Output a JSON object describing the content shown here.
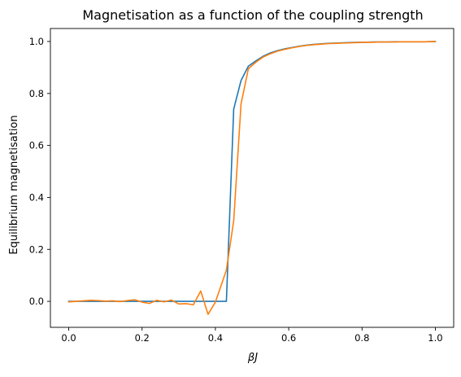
{
  "chart_data": {
    "type": "line",
    "title": "Magnetisation as a function of the coupling strength",
    "xlabel": "βJ",
    "ylabel": "Equilibrium magnetisation",
    "xlim": [
      -0.05,
      1.05
    ],
    "ylim": [
      -0.1,
      1.05
    ],
    "xticks": [
      0.0,
      0.2,
      0.4,
      0.6,
      0.8,
      1.0
    ],
    "xtick_labels": [
      "0.0",
      "0.2",
      "0.4",
      "0.6",
      "0.8",
      "1.0"
    ],
    "yticks": [
      0.0,
      0.2,
      0.4,
      0.6,
      0.8,
      1.0
    ],
    "ytick_labels": [
      "0.0",
      "0.2",
      "0.4",
      "0.6",
      "0.8",
      "1.0"
    ],
    "grid": false,
    "legend": "none",
    "series": [
      {
        "color": "#1f77b4",
        "x": [
          0,
          0.02,
          0.04,
          0.06,
          0.08,
          0.1,
          0.12,
          0.14,
          0.16,
          0.18,
          0.2,
          0.22,
          0.24,
          0.26,
          0.28,
          0.3,
          0.32,
          0.34,
          0.36,
          0.38,
          0.4,
          0.42,
          0.43,
          0.45,
          0.47,
          0.49,
          0.51,
          0.53,
          0.55,
          0.57,
          0.59,
          0.61,
          0.63,
          0.65,
          0.67,
          0.69,
          0.71,
          0.73,
          0.75,
          0.77,
          0.79,
          0.81,
          0.83,
          0.85,
          0.87,
          0.89,
          0.91,
          0.93,
          0.95,
          0.97,
          1.0
        ],
        "y": [
          0,
          0,
          0,
          0,
          0,
          0,
          0,
          0,
          0,
          0,
          0,
          0,
          0,
          0,
          0,
          0,
          0,
          0,
          0,
          0,
          0,
          0,
          0,
          0.74,
          0.85,
          0.905,
          0.925,
          0.943,
          0.956,
          0.965,
          0.972,
          0.977,
          0.982,
          0.986,
          0.989,
          0.991,
          0.993,
          0.994,
          0.995,
          0.996,
          0.997,
          0.997,
          0.998,
          0.998,
          0.998,
          0.999,
          0.999,
          0.999,
          0.999,
          0.999,
          1.0
        ]
      },
      {
        "color": "#ff7f0e",
        "x": [
          0,
          0.02,
          0.04,
          0.06,
          0.08,
          0.1,
          0.12,
          0.14,
          0.16,
          0.18,
          0.2,
          0.22,
          0.24,
          0.26,
          0.28,
          0.3,
          0.32,
          0.34,
          0.36,
          0.38,
          0.4,
          0.43,
          0.45,
          0.47,
          0.49,
          0.51,
          0.53,
          0.55,
          0.57,
          0.59,
          0.61,
          0.63,
          0.65,
          0.67,
          0.69,
          0.71,
          0.73,
          0.75,
          0.77,
          0.79,
          0.81,
          0.83,
          0.85,
          0.87,
          0.89,
          0.91,
          0.93,
          0.95,
          0.97,
          1.0
        ],
        "y": [
          -0.002,
          0.0,
          0.002,
          0.004,
          0.003,
          0.001,
          0.002,
          -0.001,
          0.003,
          0.006,
          -0.003,
          -0.008,
          0.004,
          -0.002,
          0.005,
          -0.01,
          -0.009,
          -0.013,
          0.04,
          -0.05,
          -0.003,
          0.12,
          0.31,
          0.76,
          0.895,
          0.92,
          0.94,
          0.953,
          0.963,
          0.97,
          0.976,
          0.981,
          0.985,
          0.988,
          0.99,
          0.992,
          0.993,
          0.994,
          0.995,
          0.996,
          0.997,
          0.997,
          0.998,
          0.998,
          0.998,
          0.999,
          0.999,
          0.999,
          0.999,
          1.0
        ]
      }
    ]
  }
}
